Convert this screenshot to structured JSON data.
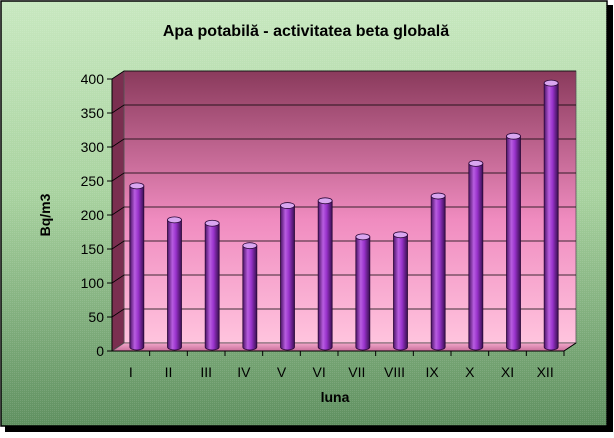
{
  "chart_data": {
    "type": "bar",
    "title": "Apa potabilă - activitatea beta globală",
    "xlabel": "luna",
    "ylabel": "Bq/m3",
    "ylim": [
      0,
      400
    ],
    "yticks": [
      0,
      50,
      100,
      150,
      200,
      250,
      300,
      350,
      400
    ],
    "categories": [
      "I",
      "II",
      "III",
      "IV",
      "V",
      "VI",
      "VII",
      "VIII",
      "IX",
      "X",
      "XI",
      "XII"
    ],
    "values": [
      237,
      187,
      182,
      149,
      208,
      215,
      162,
      165,
      222,
      270,
      310,
      388
    ],
    "grid": true,
    "legend": "none",
    "style": "3d-cylinder"
  },
  "colors": {
    "background_top": "#c8e8c0",
    "background_bottom": "#5f9060",
    "wall_top": "#8a3a5c",
    "wall_bottom": "#ffc4de",
    "bar_fill": "#9933cc",
    "bar_dark": "#4c1466",
    "bar_top": "#d9a6f0",
    "axis": "#000000"
  }
}
